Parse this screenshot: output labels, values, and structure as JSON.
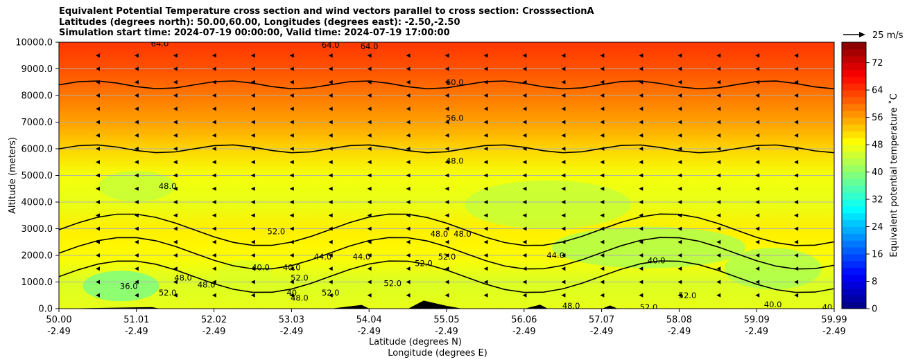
{
  "chart_data": {
    "type": "heatmap",
    "title_lines": [
      "Equivalent Potential Temperature cross section and wind vectors parallel to cross section: CrosssectionA",
      "Latitudes (degrees north): 50.00,60.00, Longitudes (degrees east): -2.50,-2.50",
      "Simulation start time: 2024-07-19 00:00:00, Valid time: 2024-07-19 17:00:00"
    ],
    "xlabel_lines": [
      "Latitude (degrees N)",
      "Longitude (degrees E)"
    ],
    "ylabel": "Altitude (meters)",
    "x_ticks_lat": [
      "50.00",
      "51.01",
      "52.02",
      "53.03",
      "54.04",
      "55.05",
      "56.06",
      "57.07",
      "58.08",
      "59.09",
      "59.99"
    ],
    "x_ticks_lon": [
      "-2.49",
      "-2.49",
      "-2.49",
      "-2.49",
      "-2.49",
      "-2.49",
      "-2.49",
      "-2.49",
      "-2.49",
      "-2.49",
      "-2.49"
    ],
    "xlim": [
      50.0,
      59.99
    ],
    "ylim": [
      0,
      10000
    ],
    "y_ticks": [
      "0.0",
      "1000.0",
      "2000.0",
      "3000.0",
      "4000.0",
      "5000.0",
      "6000.0",
      "7000.0",
      "8000.0",
      "9000.0",
      "10000.0"
    ],
    "grid": "horizontal",
    "colorbar": {
      "label": "Equivalent potential temperature $^\\circ$C",
      "label_text": "Equivalent potential temperature ˚C",
      "range": [
        0,
        78
      ],
      "ticks": [
        "0",
        "8",
        "16",
        "24",
        "32",
        "40",
        "48",
        "56",
        "64",
        "72"
      ],
      "colormap": "jet"
    },
    "wind_key": {
      "label": "25 m/s",
      "direction": "right"
    },
    "wind_direction": "left",
    "contour_levels": [
      40,
      44,
      48,
      52,
      56,
      60,
      64
    ],
    "theta_e_profile": [
      {
        "alt": 0,
        "value": 47
      },
      {
        "alt": 1000,
        "value": 46
      },
      {
        "alt": 2000,
        "value": 49
      },
      {
        "alt": 3000,
        "value": 50
      },
      {
        "alt": 4000,
        "value": 47
      },
      {
        "alt": 5000,
        "value": 48
      },
      {
        "alt": 6000,
        "value": 52
      },
      {
        "alt": 7000,
        "value": 56
      },
      {
        "alt": 8000,
        "value": 59
      },
      {
        "alt": 9000,
        "value": 62
      },
      {
        "alt": 10000,
        "value": 64
      }
    ],
    "contour_labels": [
      {
        "text": "64.0",
        "lat": 51.3,
        "alt": 9950
      },
      {
        "text": "64.0",
        "lat": 53.5,
        "alt": 9900
      },
      {
        "text": "64.0",
        "lat": 54.0,
        "alt": 9850
      },
      {
        "text": "60.0",
        "lat": 55.1,
        "alt": 8500
      },
      {
        "text": "56.0",
        "lat": 55.1,
        "alt": 7150
      },
      {
        "text": "48.0",
        "lat": 55.1,
        "alt": 5550
      },
      {
        "text": "48.0",
        "lat": 51.4,
        "alt": 4600
      },
      {
        "text": "52.0",
        "lat": 52.8,
        "alt": 2900
      },
      {
        "text": "48.0",
        "lat": 54.9,
        "alt": 2800
      },
      {
        "text": "48.0",
        "lat": 55.2,
        "alt": 2800
      },
      {
        "text": "44.0",
        "lat": 53.4,
        "alt": 1950
      },
      {
        "text": "44.0",
        "lat": 53.9,
        "alt": 1950
      },
      {
        "text": "52.0",
        "lat": 55.0,
        "alt": 1950
      },
      {
        "text": "52.0",
        "lat": 54.7,
        "alt": 1700
      },
      {
        "text": "44.0",
        "lat": 56.4,
        "alt": 2000
      },
      {
        "text": "40.0",
        "lat": 57.7,
        "alt": 1800
      },
      {
        "text": "40.0",
        "lat": 52.6,
        "alt": 1550
      },
      {
        "text": "40.0",
        "lat": 53.0,
        "alt": 1550
      },
      {
        "text": "48.0",
        "lat": 51.6,
        "alt": 1150
      },
      {
        "text": "52.0",
        "lat": 53.1,
        "alt": 1150
      },
      {
        "text": "48.0",
        "lat": 51.9,
        "alt": 900
      },
      {
        "text": "36.0",
        "lat": 50.9,
        "alt": 850
      },
      {
        "text": "52.0",
        "lat": 51.4,
        "alt": 600
      },
      {
        "text": "52.0",
        "lat": 54.3,
        "alt": 950
      },
      {
        "text": "52.0",
        "lat": 53.5,
        "alt": 600
      },
      {
        "text": "48.0",
        "lat": 53.1,
        "alt": 400
      },
      {
        "text": "40",
        "lat": 53.0,
        "alt": 600
      },
      {
        "text": "52.0",
        "lat": 58.1,
        "alt": 500
      },
      {
        "text": "48.0",
        "lat": 56.6,
        "alt": 100
      },
      {
        "text": "52.0",
        "lat": 57.6,
        "alt": 50
      },
      {
        "text": "40.0",
        "lat": 59.2,
        "alt": 150
      },
      {
        "text": "40",
        "lat": 59.9,
        "alt": 50
      }
    ]
  },
  "colors": {
    "jet_stops": [
      "#00007f",
      "#0000ff",
      "#007fff",
      "#00ffff",
      "#7fff7f",
      "#ffff00",
      "#ff7f00",
      "#ff0000",
      "#7f0000"
    ]
  }
}
